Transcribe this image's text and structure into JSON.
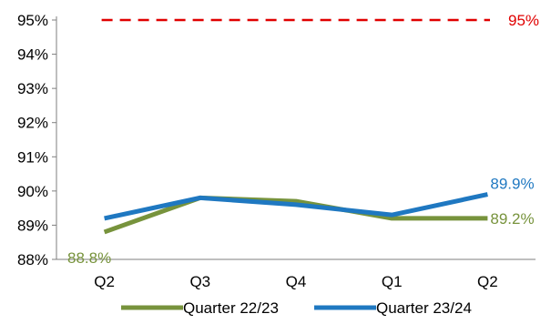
{
  "chart_data": {
    "type": "line",
    "categories": [
      "Q2",
      "Q3",
      "Q4",
      "Q1",
      "Q2"
    ],
    "ylim": [
      88,
      95
    ],
    "yticks": [
      88,
      89,
      90,
      91,
      92,
      93,
      94,
      95
    ],
    "ytick_labels": [
      "88%",
      "89%",
      "90%",
      "91%",
      "92%",
      "93%",
      "94%",
      "95%"
    ],
    "grid": false,
    "legend_position": "bottom",
    "target": {
      "value": 95,
      "label": "95%",
      "color": "#e00000",
      "style": "dashed"
    },
    "series": [
      {
        "name": "Quarter 22/23",
        "color": "#77933c",
        "values": [
          88.8,
          89.8,
          89.7,
          89.2,
          89.2
        ],
        "labels": {
          "first": "88.8%",
          "last": "89.2%"
        }
      },
      {
        "name": "Quarter 23/24",
        "color": "#1f78c1",
        "values": [
          89.2,
          89.8,
          89.6,
          89.3,
          89.9
        ],
        "labels": {
          "last": "89.9%"
        }
      }
    ]
  }
}
